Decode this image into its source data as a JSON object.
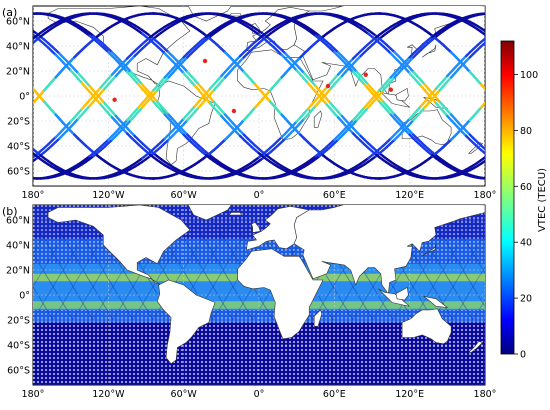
{
  "panels": [
    {
      "label": "(a)",
      "lat_ticks": [
        "60°N",
        "40°N",
        "20°N",
        "0°",
        "20°S",
        "40°S",
        "60°S"
      ],
      "lon_ticks": [
        "180°",
        "120°W",
        "60°W",
        "0°",
        "60°E",
        "120°E",
        "180°"
      ]
    },
    {
      "label": "(b)",
      "lat_ticks": [
        "60°N",
        "40°N",
        "20°N",
        "0°",
        "20°S",
        "40°S",
        "60°S"
      ],
      "lon_ticks": [
        "180°",
        "120°W",
        "60°W",
        "0°",
        "60°E",
        "120°E",
        "180°"
      ]
    }
  ],
  "colorbar": {
    "label": "VTEC (TECU)",
    "ticks": [
      "0",
      "20",
      "40",
      "60",
      "80",
      "100"
    ],
    "range": [
      0,
      112
    ],
    "colormap": "jet",
    "colors": [
      "#00007f",
      "#0000ff",
      "#007fff",
      "#00ffff",
      "#7fff7f",
      "#ffff00",
      "#ff7f00",
      "#ff0000",
      "#7f0000"
    ]
  }
}
